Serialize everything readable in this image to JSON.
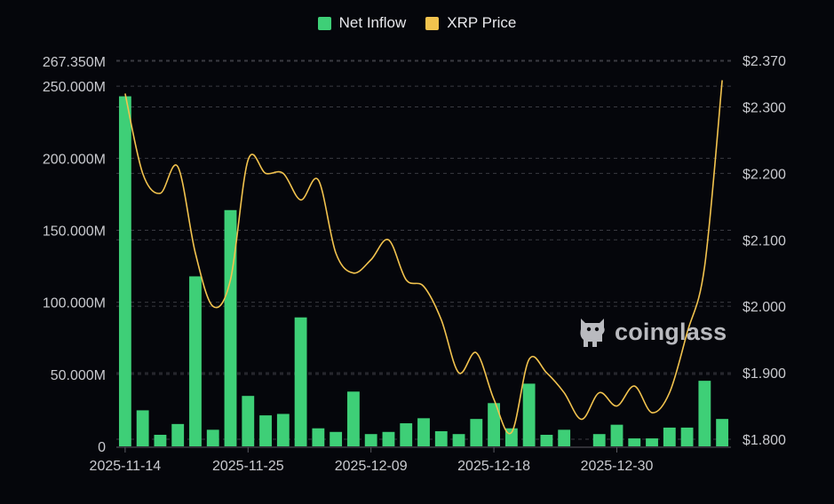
{
  "title_fragment": "",
  "legend": {
    "inflow_label": "Net Inflow",
    "price_label": "XRP Price"
  },
  "watermark": {
    "text": "coinglass"
  },
  "colors": {
    "background": "#05060b",
    "inflow": "#3ecf77",
    "price": "#f2c34e",
    "grid": "#3a3b42",
    "tick_text": "#c9cacf"
  },
  "chart_data": {
    "type": "bar",
    "title": "",
    "x_tick_labels": [
      "2025-11-14",
      "2025-11-25",
      "2025-12-09",
      "2025-12-18",
      "2025-12-30"
    ],
    "x_tick_indices": [
      0,
      7,
      14,
      21,
      28
    ],
    "left_axis": {
      "ylim": [
        0,
        267350000
      ],
      "ticks": [
        0,
        50000000,
        100000000,
        150000000,
        200000000,
        250000000,
        267350000
      ],
      "tick_labels": [
        "0",
        "50.000M",
        "100.000M",
        "150.000M",
        "200.000M",
        "250.000M",
        "267.350M"
      ]
    },
    "right_axis": {
      "ylim": [
        1.8,
        2.37
      ],
      "ticks": [
        1.8,
        1.9,
        2.0,
        2.1,
        2.2,
        2.3,
        2.37
      ],
      "tick_labels": [
        "$1.800",
        "$1.900",
        "$2.000",
        "$2.100",
        "$2.200",
        "$2.300",
        "$2.370"
      ]
    },
    "grid": true,
    "legend_position": "top-center",
    "series": [
      {
        "name": "Net Inflow",
        "type": "bar",
        "axis": "left",
        "values": [
          243000000,
          25000000,
          8000000,
          15500000,
          118000000,
          11500000,
          164000000,
          35000000,
          21500000,
          22500000,
          89500000,
          12500000,
          10000000,
          38000000,
          8500000,
          10000000,
          16000000,
          19500000,
          10500000,
          8500000,
          19000000,
          30000000,
          12500000,
          43500000,
          8000000,
          11500000,
          0,
          8500000,
          15000000,
          5500000,
          5500000,
          13000000,
          13000000,
          45500000,
          19000000
        ]
      },
      {
        "name": "XRP Price",
        "type": "line",
        "axis": "right",
        "values": [
          2.32,
          2.2,
          2.17,
          2.21,
          2.08,
          2.0,
          2.04,
          2.22,
          2.2,
          2.2,
          2.16,
          2.19,
          2.08,
          2.05,
          2.07,
          2.1,
          2.04,
          2.03,
          1.98,
          1.9,
          1.93,
          1.86,
          1.81,
          1.92,
          1.9,
          1.87,
          1.83,
          1.87,
          1.85,
          1.88,
          1.84,
          1.87,
          1.96,
          2.06,
          2.34
        ]
      }
    ]
  }
}
